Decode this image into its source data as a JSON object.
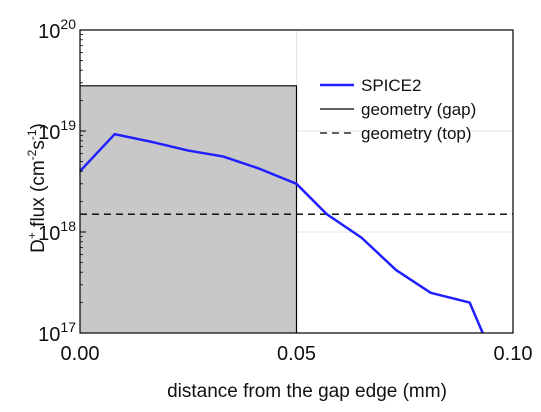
{
  "chart_data": {
    "type": "line",
    "xlabel": "distance from the gap edge (mm)",
    "ylabel": {
      "base": "D",
      "base_sup": "+",
      "text": " flux (cm",
      "sup1": "-2",
      "mid": "s",
      "sup2": "-1",
      "end": ")"
    },
    "xlim": [
      0.0,
      0.1
    ],
    "ylim": [
      1e+17,
      1e+20
    ],
    "yscale": "log",
    "x_ticks": [
      {
        "value": 0.0,
        "label": "0.00"
      },
      {
        "value": 0.05,
        "label": "0.05"
      },
      {
        "value": 0.1,
        "label": "0.10"
      }
    ],
    "y_ticks": [
      {
        "value": 1e+17,
        "base": "10",
        "exp": "17"
      },
      {
        "value": 1e+18,
        "base": "10",
        "exp": "18"
      },
      {
        "value": 1e+19,
        "base": "10",
        "exp": "19"
      },
      {
        "value": 1e+20,
        "base": "10",
        "exp": "20"
      }
    ],
    "grid": true,
    "legend_position": "top-right",
    "series": [
      {
        "name": "SPICE2",
        "color": "#1f1fff",
        "style": "solid",
        "x": [
          0.0,
          0.008,
          0.016,
          0.025,
          0.033,
          0.041,
          0.05,
          0.057,
          0.065,
          0.073,
          0.081,
          0.09,
          0.093
        ],
        "y": [
          4e+18,
          9.3e+18,
          7.9e+18,
          6.4e+18,
          5.6e+18,
          4.3e+18,
          3e+18,
          1.5e+18,
          8.8e+17,
          4.2e+17,
          2.5e+17,
          2e+17,
          1e+17
        ]
      },
      {
        "name": "geometry (gap)",
        "color": "#000000",
        "style": "solid",
        "x": [
          0.0,
          0.05,
          0.05
        ],
        "y": [
          2.8e+19,
          2.8e+19,
          1e+17
        ],
        "fill": "#c8c8c8"
      },
      {
        "name": "geometry (top)",
        "color": "#000000",
        "style": "dashed",
        "x": [
          0.0,
          0.1
        ],
        "y": [
          1.5e+18,
          1.5e+18
        ]
      }
    ]
  }
}
